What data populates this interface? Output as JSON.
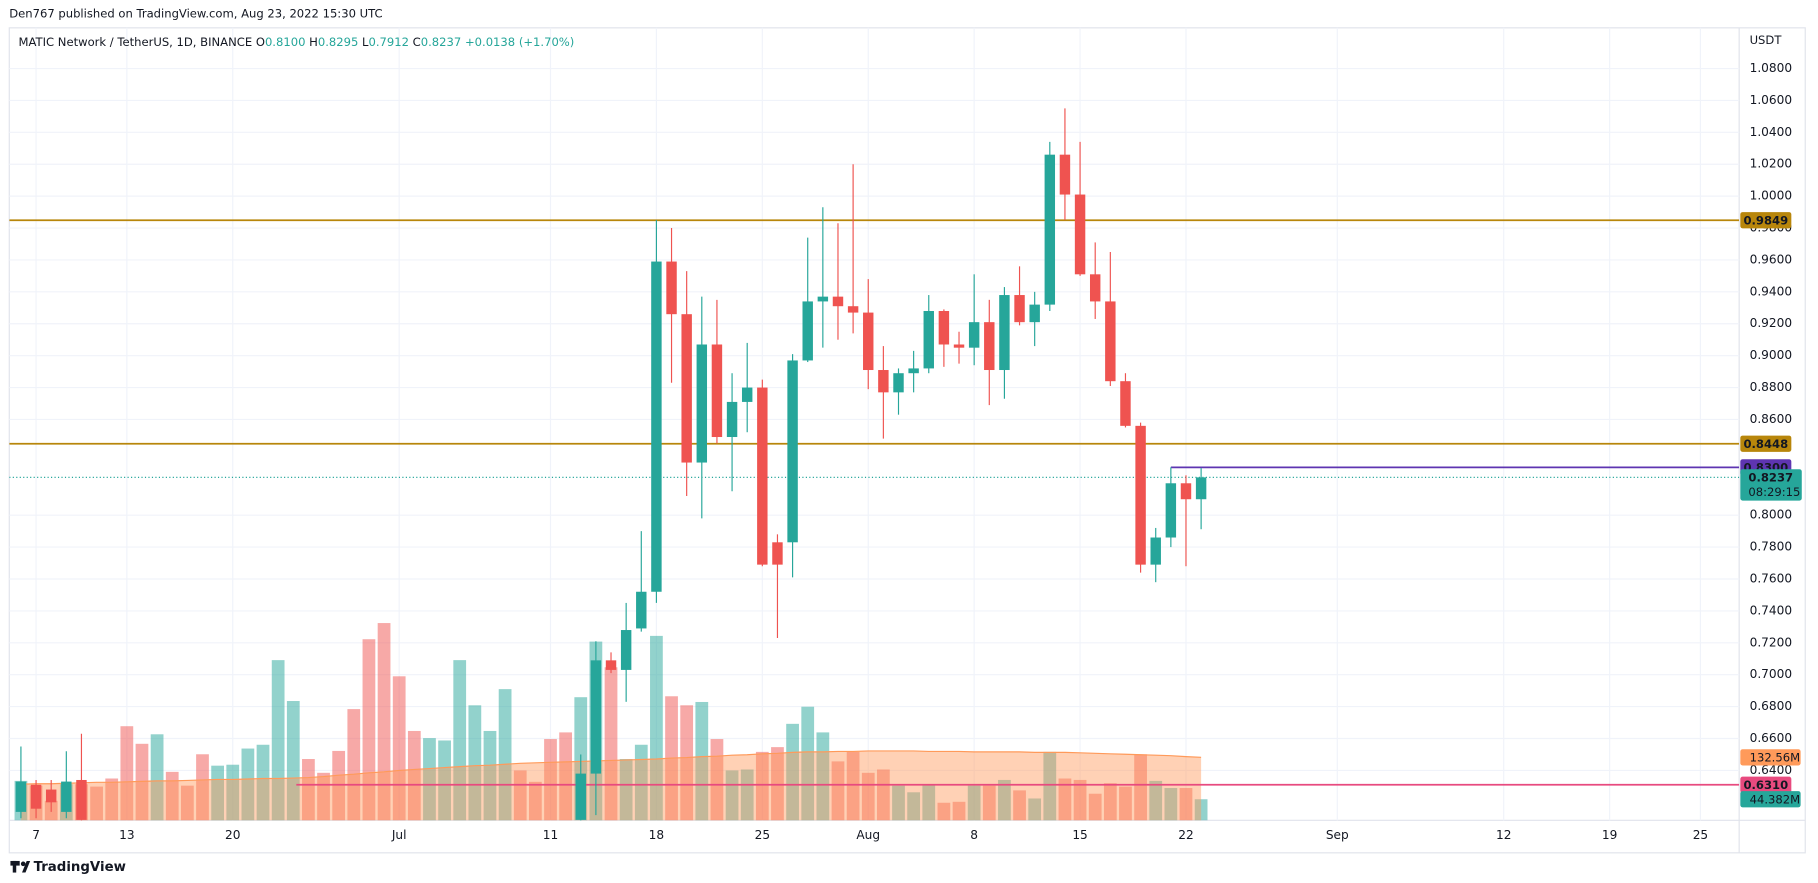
{
  "chart_data": {
    "type": "candlestick",
    "header": "Den767 published on TradingView.com, Aug 23, 2022 15:30 UTC",
    "symbol": "MATIC Network / TetherUS, 1D, BINANCE",
    "ohlc": [
      {
        "key": "O",
        "value": "0.8100"
      },
      {
        "key": "H",
        "value": "0.8295"
      },
      {
        "key": "L",
        "value": "0.7912"
      },
      {
        "key": "C",
        "value": "0.8237"
      }
    ],
    "change": "+0.0138 (+1.70%)",
    "currency": "USDT",
    "footer": "TradingView",
    "up_color": "#26a69a",
    "down_color": "#ef5350",
    "grid": true,
    "xlim": [
      -0.77,
      113.56
    ],
    "ylim": [
      0.6087,
      1.1055
    ],
    "xticks": [
      {
        "value": 1,
        "label": "7"
      },
      {
        "value": 7,
        "label": "13"
      },
      {
        "value": 14,
        "label": "20"
      },
      {
        "value": 25,
        "label": "Jul"
      },
      {
        "value": 35,
        "label": "11"
      },
      {
        "value": 42,
        "label": "18"
      },
      {
        "value": 49,
        "label": "25"
      },
      {
        "value": 56,
        "label": "Aug"
      },
      {
        "value": 63,
        "label": "8"
      },
      {
        "value": 70,
        "label": "15"
      },
      {
        "value": 77,
        "label": "22"
      },
      {
        "value": 87,
        "label": "Sep"
      },
      {
        "value": 98,
        "label": "12"
      },
      {
        "value": 105,
        "label": "19"
      },
      {
        "value": 111,
        "label": "25"
      }
    ],
    "yticks": [
      {
        "value": 1.08,
        "label": "1.0800"
      },
      {
        "value": 1.06,
        "label": "1.0600"
      },
      {
        "value": 1.04,
        "label": "1.0400"
      },
      {
        "value": 1.02,
        "label": "1.0200"
      },
      {
        "value": 1,
        "label": "1.0000"
      },
      {
        "value": 0.98,
        "label": "0.9800"
      },
      {
        "value": 0.96,
        "label": "0.9600"
      },
      {
        "value": 0.94,
        "label": "0.9400"
      },
      {
        "value": 0.92,
        "label": "0.9200"
      },
      {
        "value": 0.9,
        "label": "0.9000"
      },
      {
        "value": 0.88,
        "label": "0.8800"
      },
      {
        "value": 0.86,
        "label": "0.8600"
      },
      {
        "value": 0.8,
        "label": "0.8000"
      },
      {
        "value": 0.78,
        "label": "0.7800"
      },
      {
        "value": 0.76,
        "label": "0.7600"
      },
      {
        "value": 0.74,
        "label": "0.7400"
      },
      {
        "value": 0.72,
        "label": "0.7200"
      },
      {
        "value": 0.7,
        "label": "0.7000"
      },
      {
        "value": 0.68,
        "label": "0.6800"
      },
      {
        "value": 0.66,
        "label": "0.6600"
      },
      {
        "value": 0.64,
        "label": "0.6400"
      }
    ],
    "candles": {
      "x": [
        0,
        1,
        2,
        3,
        4,
        37,
        38,
        39,
        40,
        41,
        42,
        43,
        44,
        45,
        46,
        47,
        48,
        49,
        50,
        51,
        52,
        53,
        54,
        55,
        56,
        57,
        58,
        59,
        60,
        61,
        62,
        63,
        64,
        65,
        66,
        67,
        68,
        69,
        70,
        71,
        72,
        73,
        74,
        75,
        76,
        77,
        78
      ],
      "open": [
        0.614,
        0.631,
        0.628,
        0.614,
        0.634,
        0.609,
        0.638,
        0.709,
        0.703,
        0.729,
        0.752,
        0.959,
        0.926,
        0.833,
        0.907,
        0.849,
        0.871,
        0.88,
        0.783,
        0.783,
        0.897,
        0.934,
        0.937,
        0.931,
        0.927,
        0.891,
        0.877,
        0.889,
        0.892,
        0.928,
        0.907,
        0.905,
        0.921,
        0.891,
        0.938,
        0.921,
        0.932,
        1.026,
        1.001,
        0.951,
        0.934,
        0.884,
        0.856,
        0.769,
        0.786,
        0.82,
        0.81
      ],
      "high": [
        0.655,
        0.634,
        0.634,
        0.652,
        0.663,
        0.65,
        0.721,
        0.714,
        0.745,
        0.79,
        0.985,
        0.98,
        0.953,
        0.937,
        0.935,
        0.889,
        0.908,
        0.885,
        0.788,
        0.901,
        0.974,
        0.993,
        0.983,
        1.02,
        0.948,
        0.906,
        0.892,
        0.903,
        0.938,
        0.929,
        0.915,
        0.951,
        0.935,
        0.943,
        0.956,
        0.94,
        1.034,
        1.055,
        1.034,
        0.971,
        0.965,
        0.889,
        0.858,
        0.792,
        0.83,
        0.825,
        0.8295
      ],
      "low": [
        0.61,
        0.61,
        0.614,
        0.61,
        0.605,
        0.6,
        0.612,
        0.701,
        0.683,
        0.727,
        0.745,
        0.883,
        0.812,
        0.798,
        0.845,
        0.815,
        0.852,
        0.768,
        0.723,
        0.761,
        0.896,
        0.905,
        0.91,
        0.914,
        0.879,
        0.848,
        0.863,
        0.877,
        0.889,
        0.893,
        0.895,
        0.894,
        0.869,
        0.873,
        0.919,
        0.906,
        0.928,
        0.985,
        0.95,
        0.923,
        0.881,
        0.855,
        0.764,
        0.758,
        0.78,
        0.768,
        0.7912
      ],
      "close": [
        0.633,
        0.616,
        0.62,
        0.633,
        0.609,
        0.638,
        0.709,
        0.703,
        0.728,
        0.752,
        0.959,
        0.926,
        0.833,
        0.907,
        0.849,
        0.871,
        0.88,
        0.769,
        0.769,
        0.897,
        0.934,
        0.937,
        0.931,
        0.927,
        0.891,
        0.877,
        0.889,
        0.892,
        0.928,
        0.907,
        0.905,
        0.921,
        0.891,
        0.938,
        0.921,
        0.932,
        1.026,
        1.001,
        0.951,
        0.934,
        0.884,
        0.856,
        0.769,
        0.786,
        0.82,
        0.81,
        0.8237
      ]
    },
    "volume": {
      "ylim": [
        0,
        1667
      ],
      "values": [
        83,
        73,
        41,
        76,
        76,
        71,
        88,
        198,
        161,
        181,
        102,
        73,
        139,
        115,
        117,
        151,
        159,
        337,
        251,
        129,
        100,
        146,
        234,
        381,
        415,
        303,
        188,
        173,
        168,
        337,
        242,
        188,
        276,
        105,
        81,
        171,
        185,
        259,
        376,
        322,
        129,
        159,
        388,
        261,
        242,
        249,
        171,
        105,
        107,
        144,
        154,
        203,
        239,
        185,
        124,
        144,
        100,
        107,
        73,
        59,
        76,
        37,
        39,
        73,
        73,
        85,
        63,
        46,
        144,
        88,
        85,
        56,
        78,
        71,
        139,
        83,
        68,
        68,
        44.382
      ],
      "up": [
        true,
        false,
        false,
        true,
        false,
        false,
        false,
        false,
        false,
        true,
        false,
        false,
        false,
        true,
        true,
        true,
        true,
        true,
        true,
        false,
        false,
        false,
        false,
        false,
        false,
        false,
        false,
        true,
        true,
        true,
        true,
        true,
        true,
        false,
        false,
        false,
        false,
        true,
        true,
        false,
        true,
        true,
        true,
        false,
        false,
        true,
        false,
        true,
        true,
        false,
        false,
        true,
        true,
        true,
        false,
        false,
        false,
        false,
        true,
        true,
        true,
        false,
        false,
        true,
        false,
        true,
        false,
        true,
        true,
        false,
        false,
        false,
        false,
        false,
        false,
        true,
        true,
        false,
        true
      ],
      "up_color": "rgba(38,166,154,0.5)",
      "down_color": "rgba(239,83,80,0.5)",
      "last_label": "44.382M",
      "ma": [
        76,
        77,
        77,
        78,
        79,
        80,
        80,
        81,
        82,
        83,
        83,
        84,
        85,
        86,
        86,
        87,
        88,
        88,
        89,
        90,
        92,
        95,
        97,
        100,
        102,
        105,
        107,
        109,
        111,
        113,
        115,
        116,
        118,
        120,
        121,
        122,
        123,
        124,
        125,
        126,
        127,
        128,
        129,
        131,
        132,
        134,
        135,
        137,
        138,
        140,
        141,
        143,
        144,
        144,
        145,
        145,
        146,
        146,
        146,
        146,
        145,
        145,
        145,
        144,
        144,
        144,
        144,
        143,
        143,
        143,
        142,
        141,
        140,
        139,
        138,
        137,
        136,
        134,
        132.56
      ],
      "ma_color": "#ff9a5a",
      "ma_label": "132.56M"
    },
    "levels": [
      {
        "value": 0.9849,
        "label": "0.9849",
        "color": "#b8860b",
        "from": null
      },
      {
        "value": 0.8448,
        "label": "0.8448",
        "color": "#b8860b",
        "from": null
      },
      {
        "value": 0.83,
        "label": "0.8300",
        "color": "#5e35b1",
        "from": 76
      },
      {
        "value": 0.631,
        "label": "0.6310",
        "color": "#e84a7f",
        "from": 18.2
      }
    ],
    "last_price": {
      "value": 0.8237,
      "label": "0.8237",
      "countdown": "08:29:15",
      "color": "#26a69a"
    }
  }
}
